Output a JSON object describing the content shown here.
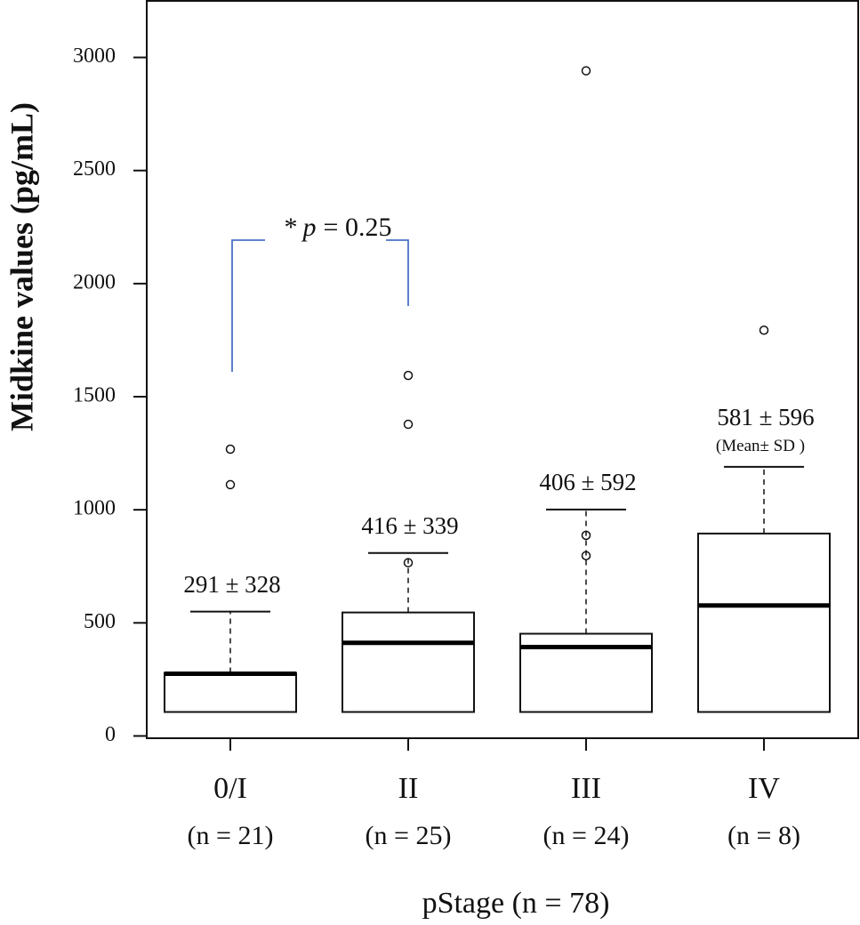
{
  "chart_data": {
    "type": "box",
    "y_label": "Midkine values (pg/mL)",
    "x_label": "pStage (n = 78)",
    "categories": [
      "0/I",
      "II",
      "III",
      "IV"
    ],
    "sample_sizes": [
      "(n = 21)",
      "(n = 25)",
      "(n = 24)",
      "(n = 8)"
    ],
    "boxes": [
      {
        "low": 106,
        "q1": 106,
        "median": 275,
        "q3": 279,
        "high": 550,
        "outliers": [
          1268,
          1111
        ]
      },
      {
        "low": 106,
        "q1": 106,
        "median": 412,
        "q3": 546,
        "high": 809,
        "outliers": [
          766,
          1378,
          1594
        ]
      },
      {
        "low": 106,
        "q1": 106,
        "median": 393,
        "q3": 452,
        "high": 1001,
        "outliers": [
          797,
          887,
          2941
        ]
      },
      {
        "low": 106,
        "q1": 106,
        "median": 577,
        "q3": 895,
        "high": 1190,
        "outliers": [
          1794
        ]
      }
    ],
    "mean_sd_labels": [
      "291 ± 328",
      "416 ± 339",
      "406 ± 592",
      "581 ± 596"
    ],
    "mean_sd_note": "(Mean± SD )",
    "comparison": {
      "prefix": "*",
      "italic": "p",
      "suffix": "= 0.25",
      "color": "#4a72c4"
    },
    "ylim": [
      -10,
      3250
    ],
    "yticks": [
      0,
      500,
      1000,
      1500,
      2000,
      2500,
      3000
    ]
  }
}
